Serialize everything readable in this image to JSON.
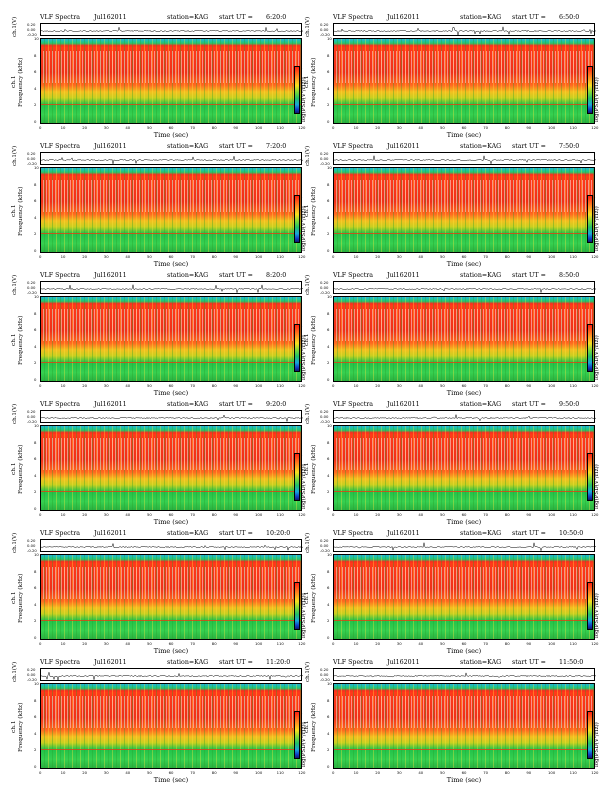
{
  "figure_title": "VLF Spectra",
  "date": "Jul162011",
  "station": "station=KAG",
  "start_prefix": "start  UT =",
  "ts_ylabel": "ch.1(V)",
  "spec_ylabel_line1": "ch.1",
  "spec_ylabel_line2": "Frequency  (kHz)",
  "xlabel": "Time  (sec)",
  "colorbar_label": "log(PSD(V²/Hz))",
  "ts_ticks": [
    "0.20",
    "0.00",
    "-0.20"
  ],
  "freq_ticks": [
    "10",
    "8",
    "6",
    "4",
    "2",
    "0"
  ],
  "time_ticks": [
    "0",
    "10",
    "20",
    "30",
    "40",
    "50",
    "60",
    "70",
    "80",
    "90",
    "100",
    "110",
    "120"
  ],
  "colorbar_ticks": [
    "-",
    "-",
    "-"
  ],
  "chart_data": [
    {
      "type": "heatmap",
      "title": "VLF Spectra",
      "start_ut": "6:20:0",
      "xlabel": "Time  (sec)",
      "ylabel": "Frequency  (kHz)",
      "xlim": [
        0,
        120
      ],
      "ylim": [
        0,
        10
      ]
    },
    {
      "type": "heatmap",
      "title": "VLF Spectra",
      "start_ut": "6:50:0",
      "xlabel": "Time  (sec)",
      "ylabel": "Frequency  (kHz)",
      "xlim": [
        0,
        120
      ],
      "ylim": [
        0,
        10
      ]
    },
    {
      "type": "heatmap",
      "title": "VLF Spectra",
      "start_ut": "7:20:0",
      "xlabel": "Time  (sec)",
      "ylabel": "Frequency  (kHz)",
      "xlim": [
        0,
        120
      ],
      "ylim": [
        0,
        10
      ]
    },
    {
      "type": "heatmap",
      "title": "VLF Spectra",
      "start_ut": "7:50:0",
      "xlabel": "Time  (sec)",
      "ylabel": "Frequency  (kHz)",
      "xlim": [
        0,
        120
      ],
      "ylim": [
        0,
        10
      ]
    },
    {
      "type": "heatmap",
      "title": "VLF Spectra",
      "start_ut": "8:20:0",
      "xlabel": "Time  (sec)",
      "ylabel": "Frequency  (kHz)",
      "xlim": [
        0,
        120
      ],
      "ylim": [
        0,
        10
      ]
    },
    {
      "type": "heatmap",
      "title": "VLF Spectra",
      "start_ut": "8:50:0",
      "xlabel": "Time  (sec)",
      "ylabel": "Frequency  (kHz)",
      "xlim": [
        0,
        120
      ],
      "ylim": [
        0,
        10
      ]
    },
    {
      "type": "heatmap",
      "title": "VLF Spectra",
      "start_ut": "9:20:0",
      "xlabel": "Time  (sec)",
      "ylabel": "Frequency  (kHz)",
      "xlim": [
        0,
        120
      ],
      "ylim": [
        0,
        10
      ]
    },
    {
      "type": "heatmap",
      "title": "VLF Spectra",
      "start_ut": "9:50:0",
      "xlabel": "Time  (sec)",
      "ylabel": "Frequency  (kHz)",
      "xlim": [
        0,
        120
      ],
      "ylim": [
        0,
        10
      ]
    },
    {
      "type": "heatmap",
      "title": "VLF Spectra",
      "start_ut": "10:20:0",
      "xlabel": "Time  (sec)",
      "ylabel": "Frequency  (kHz)",
      "xlim": [
        0,
        120
      ],
      "ylim": [
        0,
        10
      ]
    },
    {
      "type": "heatmap",
      "title": "VLF Spectra",
      "start_ut": "10:50:0",
      "xlabel": "Time  (sec)",
      "ylabel": "Frequency  (kHz)",
      "xlim": [
        0,
        120
      ],
      "ylim": [
        0,
        10
      ]
    },
    {
      "type": "heatmap",
      "title": "VLF Spectra",
      "start_ut": "11:20:0",
      "xlabel": "Time  (sec)",
      "ylabel": "Frequency  (kHz)",
      "xlim": [
        0,
        120
      ],
      "ylim": [
        0,
        10
      ]
    },
    {
      "type": "heatmap",
      "title": "VLF Spectra",
      "start_ut": "11:50:0",
      "xlabel": "Time  (sec)",
      "ylabel": "Frequency  (kHz)",
      "xlim": [
        0,
        120
      ],
      "ylim": [
        0,
        10
      ]
    }
  ]
}
